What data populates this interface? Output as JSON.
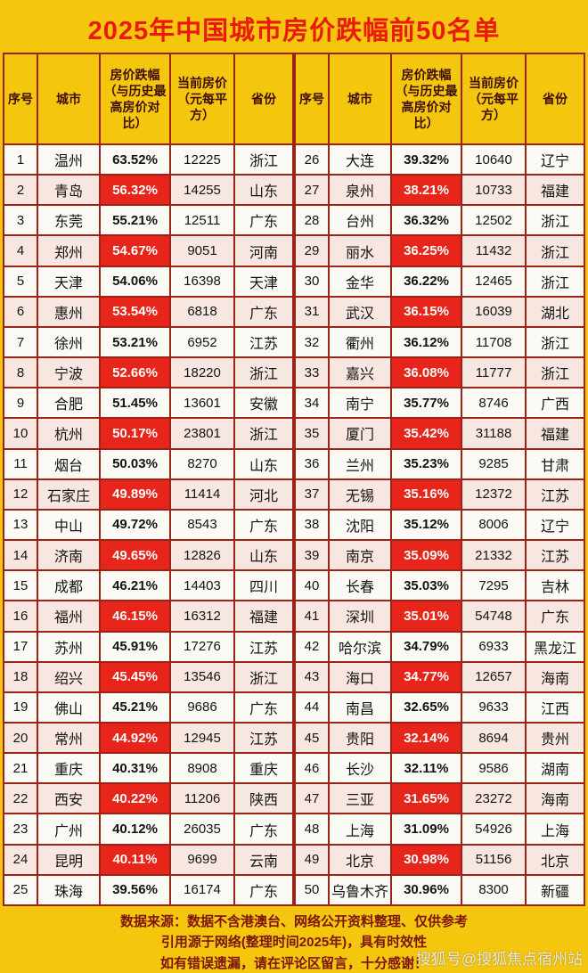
{
  "title": "2025年中国城市房价跌幅前50名单",
  "colors": {
    "background": "#F4C60E",
    "title_red": "#EA1B0D",
    "grid_border": "#9B2317",
    "highlight_red": "#E8251A",
    "row_alt_pink": "#F8E7E1",
    "header_text": "#3F0F06",
    "footer_text": "#7C150B"
  },
  "chart_data": {
    "type": "table",
    "title": "2025年中国城市房价跌幅前50名单",
    "columns": [
      "序号",
      "城市",
      "房价跌幅（与历史最高房价对比）",
      "当前房价（元每平方）",
      "省份"
    ],
    "layout": "two side-by-side tables: ranks 1-25 left, ranks 26-50 right; every second row's decline cell highlighted red",
    "rows": [
      {
        "rank": 1,
        "city": "温州",
        "decline": "63.52%",
        "price": "12225",
        "province": "浙江",
        "highlight": false
      },
      {
        "rank": 2,
        "city": "青岛",
        "decline": "56.32%",
        "price": "14255",
        "province": "山东",
        "highlight": true
      },
      {
        "rank": 3,
        "city": "东莞",
        "decline": "55.21%",
        "price": "12511",
        "province": "广东",
        "highlight": false
      },
      {
        "rank": 4,
        "city": "郑州",
        "decline": "54.67%",
        "price": "9051",
        "province": "河南",
        "highlight": true
      },
      {
        "rank": 5,
        "city": "天津",
        "decline": "54.06%",
        "price": "16398",
        "province": "天津",
        "highlight": false
      },
      {
        "rank": 6,
        "city": "惠州",
        "decline": "53.54%",
        "price": "6818",
        "province": "广东",
        "highlight": true
      },
      {
        "rank": 7,
        "city": "徐州",
        "decline": "53.21%",
        "price": "6952",
        "province": "江苏",
        "highlight": false
      },
      {
        "rank": 8,
        "city": "宁波",
        "decline": "52.66%",
        "price": "18220",
        "province": "浙江",
        "highlight": true
      },
      {
        "rank": 9,
        "city": "合肥",
        "decline": "51.45%",
        "price": "13601",
        "province": "安徽",
        "highlight": false
      },
      {
        "rank": 10,
        "city": "杭州",
        "decline": "50.17%",
        "price": "23801",
        "province": "浙江",
        "highlight": true
      },
      {
        "rank": 11,
        "city": "烟台",
        "decline": "50.03%",
        "price": "8270",
        "province": "山东",
        "highlight": false
      },
      {
        "rank": 12,
        "city": "石家庄",
        "decline": "49.89%",
        "price": "11414",
        "province": "河北",
        "highlight": true
      },
      {
        "rank": 13,
        "city": "中山",
        "decline": "49.72%",
        "price": "8543",
        "province": "广东",
        "highlight": false
      },
      {
        "rank": 14,
        "city": "济南",
        "decline": "49.65%",
        "price": "12826",
        "province": "山东",
        "highlight": true
      },
      {
        "rank": 15,
        "city": "成都",
        "decline": "46.21%",
        "price": "14403",
        "province": "四川",
        "highlight": false
      },
      {
        "rank": 16,
        "city": "福州",
        "decline": "46.15%",
        "price": "16312",
        "province": "福建",
        "highlight": true
      },
      {
        "rank": 17,
        "city": "苏州",
        "decline": "45.91%",
        "price": "17276",
        "province": "江苏",
        "highlight": false
      },
      {
        "rank": 18,
        "city": "绍兴",
        "decline": "45.45%",
        "price": "13546",
        "province": "浙江",
        "highlight": true
      },
      {
        "rank": 19,
        "city": "佛山",
        "decline": "45.21%",
        "price": "9686",
        "province": "广东",
        "highlight": false
      },
      {
        "rank": 20,
        "city": "常州",
        "decline": "44.92%",
        "price": "12945",
        "province": "江苏",
        "highlight": true
      },
      {
        "rank": 21,
        "city": "重庆",
        "decline": "40.31%",
        "price": "8908",
        "province": "重庆",
        "highlight": false
      },
      {
        "rank": 22,
        "city": "西安",
        "decline": "40.22%",
        "price": "11206",
        "province": "陕西",
        "highlight": true
      },
      {
        "rank": 23,
        "city": "广州",
        "decline": "40.12%",
        "price": "26035",
        "province": "广东",
        "highlight": false
      },
      {
        "rank": 24,
        "city": "昆明",
        "decline": "40.11%",
        "price": "9699",
        "province": "云南",
        "highlight": true
      },
      {
        "rank": 25,
        "city": "珠海",
        "decline": "39.56%",
        "price": "16174",
        "province": "广东",
        "highlight": false
      },
      {
        "rank": 26,
        "city": "大连",
        "decline": "39.32%",
        "price": "10640",
        "province": "辽宁",
        "highlight": false
      },
      {
        "rank": 27,
        "city": "泉州",
        "decline": "38.21%",
        "price": "10733",
        "province": "福建",
        "highlight": true
      },
      {
        "rank": 28,
        "city": "台州",
        "decline": "36.32%",
        "price": "12502",
        "province": "浙江",
        "highlight": false
      },
      {
        "rank": 29,
        "city": "丽水",
        "decline": "36.25%",
        "price": "11432",
        "province": "浙江",
        "highlight": true
      },
      {
        "rank": 30,
        "city": "金华",
        "decline": "36.22%",
        "price": "12465",
        "province": "浙江",
        "highlight": false
      },
      {
        "rank": 31,
        "city": "武汉",
        "decline": "36.15%",
        "price": "16039",
        "province": "湖北",
        "highlight": true
      },
      {
        "rank": 32,
        "city": "衢州",
        "decline": "36.12%",
        "price": "11708",
        "province": "浙江",
        "highlight": false
      },
      {
        "rank": 33,
        "city": "嘉兴",
        "decline": "36.08%",
        "price": "11777",
        "province": "浙江",
        "highlight": true
      },
      {
        "rank": 34,
        "city": "南宁",
        "decline": "35.77%",
        "price": "8746",
        "province": "广西",
        "highlight": false
      },
      {
        "rank": 35,
        "city": "厦门",
        "decline": "35.42%",
        "price": "31188",
        "province": "福建",
        "highlight": true
      },
      {
        "rank": 36,
        "city": "兰州",
        "decline": "35.23%",
        "price": "9285",
        "province": "甘肃",
        "highlight": false
      },
      {
        "rank": 37,
        "city": "无锡",
        "decline": "35.16%",
        "price": "12372",
        "province": "江苏",
        "highlight": true
      },
      {
        "rank": 38,
        "city": "沈阳",
        "decline": "35.12%",
        "price": "8006",
        "province": "辽宁",
        "highlight": false
      },
      {
        "rank": 39,
        "city": "南京",
        "decline": "35.09%",
        "price": "21332",
        "province": "江苏",
        "highlight": true
      },
      {
        "rank": 40,
        "city": "长春",
        "decline": "35.03%",
        "price": "7295",
        "province": "吉林",
        "highlight": false
      },
      {
        "rank": 41,
        "city": "深圳",
        "decline": "35.01%",
        "price": "54748",
        "province": "广东",
        "highlight": true
      },
      {
        "rank": 42,
        "city": "哈尔滨",
        "decline": "34.79%",
        "price": "6933",
        "province": "黑龙江",
        "highlight": false
      },
      {
        "rank": 43,
        "city": "海口",
        "decline": "34.77%",
        "price": "12657",
        "province": "海南",
        "highlight": true
      },
      {
        "rank": 44,
        "city": "南昌",
        "decline": "32.65%",
        "price": "9633",
        "province": "江西",
        "highlight": false
      },
      {
        "rank": 45,
        "city": "贵阳",
        "decline": "32.14%",
        "price": "8694",
        "province": "贵州",
        "highlight": true
      },
      {
        "rank": 46,
        "city": "长沙",
        "decline": "32.11%",
        "price": "9586",
        "province": "湖南",
        "highlight": false
      },
      {
        "rank": 47,
        "city": "三亚",
        "decline": "31.65%",
        "price": "23272",
        "province": "海南",
        "highlight": true
      },
      {
        "rank": 48,
        "city": "上海",
        "decline": "31.09%",
        "price": "54926",
        "province": "上海",
        "highlight": false
      },
      {
        "rank": 49,
        "city": "北京",
        "decline": "30.98%",
        "price": "51156",
        "province": "北京",
        "highlight": true
      },
      {
        "rank": 50,
        "city": "乌鲁木齐",
        "decline": "30.96%",
        "price": "8300",
        "province": "新疆",
        "highlight": false
      }
    ]
  },
  "footer": {
    "lines": [
      "数据来源：数据不含港澳台、网络公开资料整理、仅供参考",
      "引用源于网络(整理时间2025年)，具有时效性",
      "如有错误遗漏，请在评论区留言，十分感谢！"
    ]
  },
  "watermark": "搜狐号@搜狐焦点宿州站"
}
